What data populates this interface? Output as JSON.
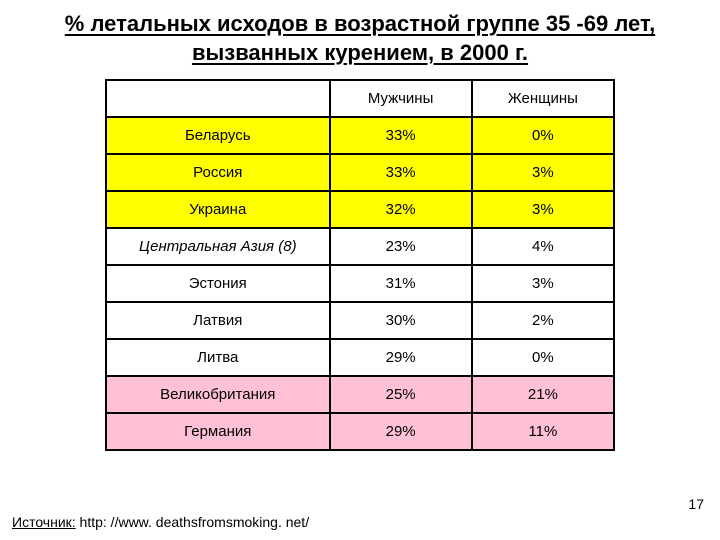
{
  "title": "% летальных исходов в возрастной группе 35 -69 лет, вызванных курением, в 2000 г.",
  "columns": {
    "c0": "",
    "c1": "Мужчины",
    "c2": "Женщины"
  },
  "rows": [
    {
      "label": "Беларусь",
      "m": "33%",
      "w": "0%",
      "cls": "yellow",
      "italic": false
    },
    {
      "label": "Россия",
      "m": "33%",
      "w": "3%",
      "cls": "yellow",
      "italic": false
    },
    {
      "label": "Украина",
      "m": "32%",
      "w": "3%",
      "cls": "yellow",
      "italic": false
    },
    {
      "label": "Центральная Азия (8)",
      "m": "23%",
      "w": "4%",
      "cls": "white",
      "italic": true
    },
    {
      "label": "Эстония",
      "m": "31%",
      "w": "3%",
      "cls": "white",
      "italic": false
    },
    {
      "label": "Латвия",
      "m": "30%",
      "w": "2%",
      "cls": "white",
      "italic": false
    },
    {
      "label": "Литва",
      "m": "29%",
      "w": "0%",
      "cls": "white",
      "italic": false
    },
    {
      "label": "Великобритания",
      "m": "25%",
      "w": "21%",
      "cls": "pink",
      "italic": false
    },
    {
      "label": "Германия",
      "m": "29%",
      "w": "11%",
      "cls": "pink",
      "italic": false
    }
  ],
  "source_label": "Источник:",
  "source_text": "http: //www. deathsfromsmoking. net/",
  "page_number": "17"
}
